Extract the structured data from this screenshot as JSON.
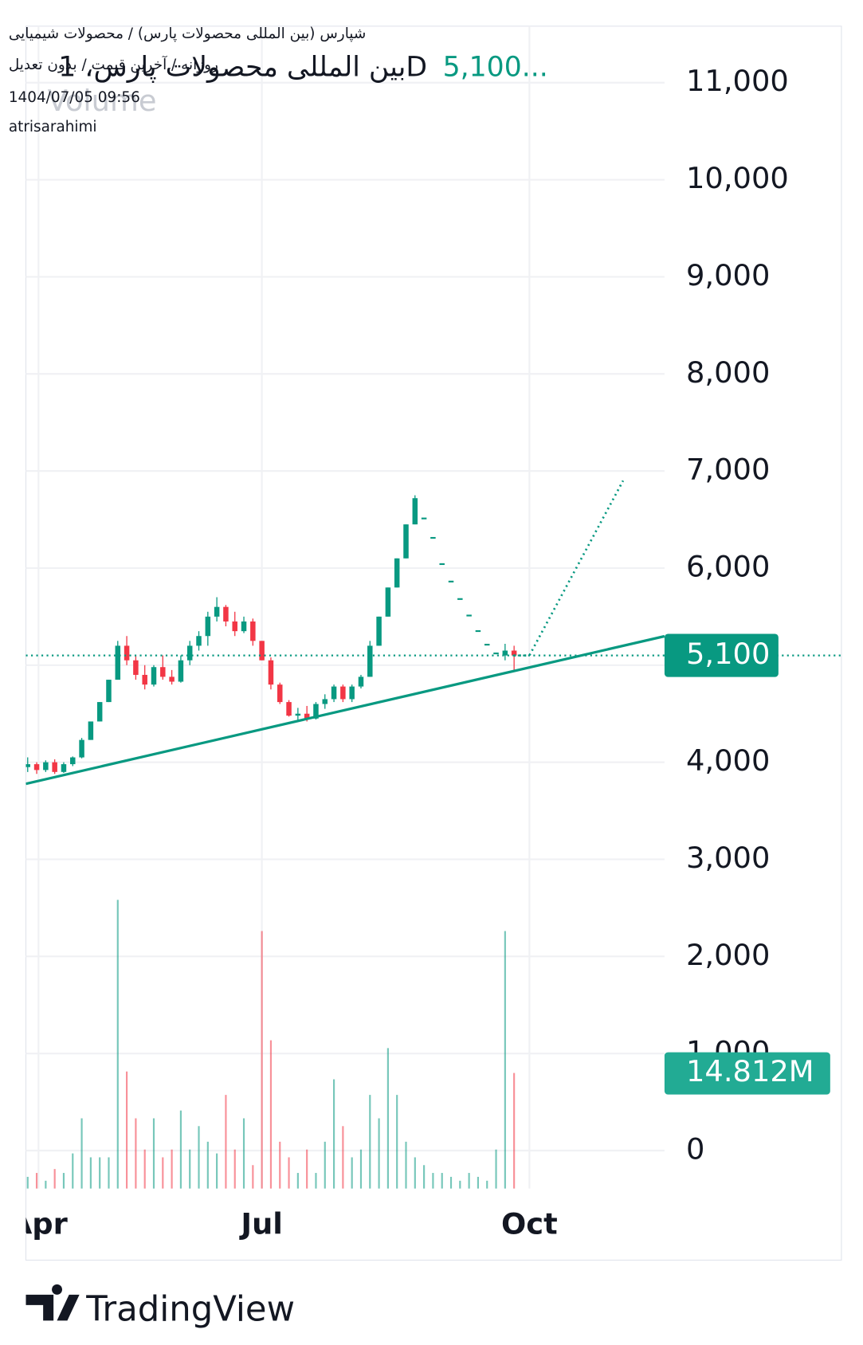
{
  "chart_data": {
    "type": "candlestick",
    "symbol_line": "شپارس (بین المللی محصولات پارس) / محصولات شیمیایی",
    "settings_line": "روزانه / آخرین قیمت / بدون تعدیل",
    "timestamp": "1404/07/05 09:56",
    "author": "atrisarahimi",
    "title": "بین المللی محصولات پارس، 1D",
    "header_price": "5,100...",
    "volume_title": "Volume",
    "brand": "TradingView",
    "open": [
      3950,
      3980,
      3920,
      4000,
      3900,
      3980,
      4050,
      4230,
      4420,
      4620,
      4850,
      5200,
      5050,
      4900,
      4800,
      4980,
      4880,
      4830,
      5050,
      5200,
      5300,
      5500,
      5600,
      5450,
      5350,
      5450,
      5250,
      5050,
      4800,
      4620,
      4480,
      4500,
      4450,
      4600,
      4650,
      4780,
      4650,
      4780,
      4880,
      5200,
      5500,
      5800,
      6100,
      6450,
      6520,
      6320,
      6050,
      5870,
      5690,
      5520,
      5360,
      5220,
      5130,
      5100,
      5150
    ],
    "high": [
      4050,
      4000,
      4020,
      4030,
      4000,
      4060,
      4250,
      4420,
      4620,
      4850,
      5250,
      5300,
      5100,
      5000,
      5000,
      5100,
      4950,
      5100,
      5250,
      5350,
      5550,
      5700,
      5620,
      5550,
      5500,
      5480,
      5250,
      5080,
      4820,
      4640,
      4560,
      4580,
      4620,
      4700,
      4800,
      4800,
      4800,
      4900,
      5250,
      5500,
      5800,
      6100,
      6450,
      6750,
      6520,
      6320,
      6050,
      5870,
      5690,
      5520,
      5360,
      5220,
      5130,
      5220,
      5200
    ],
    "low": [
      3900,
      3880,
      3900,
      3880,
      3890,
      3960,
      4040,
      4230,
      4420,
      4620,
      4850,
      5000,
      4850,
      4750,
      4780,
      4850,
      4800,
      4820,
      5000,
      5150,
      5200,
      5450,
      5400,
      5300,
      5330,
      5200,
      5050,
      4750,
      4600,
      4470,
      4430,
      4420,
      4440,
      4550,
      4620,
      4620,
      4620,
      4760,
      4880,
      5200,
      5500,
      5800,
      6100,
      6450,
      6520,
      6320,
      6050,
      5870,
      5690,
      5520,
      5360,
      5220,
      5130,
      5050,
      4950
    ],
    "close": [
      3980,
      3920,
      4000,
      3900,
      3980,
      4050,
      4230,
      4420,
      4620,
      4850,
      5200,
      5050,
      4900,
      4800,
      4980,
      4880,
      4830,
      5050,
      5200,
      5300,
      5500,
      5600,
      5450,
      5350,
      5450,
      5250,
      5050,
      4800,
      4620,
      4480,
      4500,
      4450,
      4600,
      4650,
      4780,
      4650,
      4780,
      4880,
      5200,
      5500,
      5800,
      6100,
      6450,
      6720,
      6520,
      6320,
      6050,
      5870,
      5690,
      5520,
      5360,
      5220,
      5130,
      5150,
      5100
    ],
    "volume": [
      1.5,
      2,
      1,
      2.5,
      2,
      4.5,
      9,
      4,
      4,
      4,
      37,
      15,
      9,
      5,
      9,
      4,
      5,
      10,
      5,
      8,
      6,
      4.5,
      12,
      5,
      9,
      3,
      33,
      19,
      6,
      4,
      2,
      5,
      2,
      6,
      14,
      8,
      4,
      5,
      12,
      9,
      18,
      12,
      6,
      4,
      3,
      2,
      2,
      1.5,
      1,
      2,
      1.5,
      1,
      5,
      33,
      14.812
    ],
    "up_color": "#089981",
    "down_color": "#f23645",
    "xlim": [
      -0.2,
      70.7
    ],
    "xticks": [
      {
        "value": 1.2,
        "label": "Apr"
      },
      {
        "value": 26,
        "label": "Jul"
      },
      {
        "value": 55.7,
        "label": "Oct"
      }
    ],
    "ylim": [
      -391,
      11582
    ],
    "yticks": [
      0,
      {
        "value": 1000,
        "label": "1,000"
      },
      {
        "value": 2000,
        "label": "2,000"
      },
      {
        "value": 3000,
        "label": "3,000"
      },
      {
        "value": 4000,
        "label": "4,000"
      },
      {
        "value": 5000,
        "label": "5,000"
      },
      {
        "value": 6000,
        "label": "6,000"
      },
      {
        "value": 7000,
        "label": "7,000"
      },
      {
        "value": 8000,
        "label": "8,000"
      },
      {
        "value": 9000,
        "label": "9,000"
      },
      {
        "value": 10000,
        "label": "10,000"
      },
      {
        "value": 11000,
        "label": "11,000"
      }
    ],
    "volume_ylim": [
      0,
      48
    ],
    "grid": true,
    "last_price": {
      "value": 5100,
      "label": "5,100"
    },
    "last_volume": {
      "value": 14.812,
      "label": "14.812M"
    },
    "trendline": {
      "x": [
        -0.2,
        70.7
      ],
      "y": [
        3778,
        5298
      ]
    },
    "projection": {
      "x": [
        54,
        55.7,
        66.1
      ],
      "y": [
        5100,
        5100,
        6900
      ]
    }
  }
}
